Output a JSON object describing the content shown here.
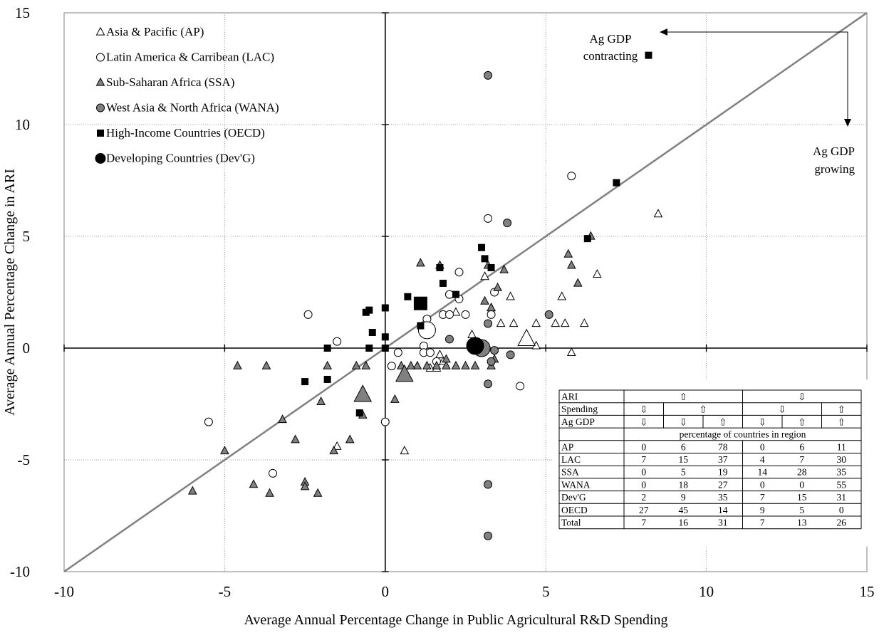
{
  "chart_data": {
    "type": "scatter",
    "xlabel": "Average Annual Percentage Change in Public Agricultural R&D Spending",
    "ylabel": "Average Annual Percentage Change in ARI",
    "xlim": [
      -10,
      15
    ],
    "ylim": [
      -10,
      15
    ],
    "x_ticks": [
      "-10",
      "-5",
      "0",
      "5",
      "10",
      "15"
    ],
    "y_ticks": [
      "-10",
      "-5",
      "0",
      "5",
      "10",
      "15"
    ],
    "grid": true,
    "legend_position": "top-left",
    "reference_line": {
      "from": [
        -10,
        -10
      ],
      "to": [
        15,
        15
      ],
      "color": "#808080"
    },
    "annotations": [
      {
        "lines": [
          "Ag GDP",
          "contracting"
        ],
        "arrow": "left"
      },
      {
        "lines": [
          "Ag GDP",
          "growing"
        ],
        "arrow": "down"
      }
    ],
    "series": [
      {
        "name": "Asia & Pacific (AP)",
        "marker": "triangle",
        "fill": "#ffffff",
        "points": [
          [
            8.5,
            6.0
          ],
          [
            6.6,
            3.3
          ],
          [
            5.5,
            2.3
          ],
          [
            6.2,
            1.1
          ],
          [
            5.6,
            1.1
          ],
          [
            5.3,
            1.1
          ],
          [
            4.7,
            1.1
          ],
          [
            4.0,
            1.1
          ],
          [
            3.6,
            1.1
          ],
          [
            3.9,
            2.3
          ],
          [
            3.3,
            1.8
          ],
          [
            3.1,
            3.2
          ],
          [
            2.7,
            0.6
          ],
          [
            2.2,
            1.6
          ],
          [
            1.8,
            -0.6
          ],
          [
            1.4,
            -0.9
          ],
          [
            1.6,
            -0.9
          ],
          [
            1.7,
            -0.3
          ],
          [
            0.6,
            -4.6
          ],
          [
            5.8,
            -0.2
          ],
          [
            -1.5,
            -4.4
          ],
          [
            4.7,
            0.1
          ]
        ],
        "averages": [
          [
            4.4,
            0.4
          ]
        ]
      },
      {
        "name": "Latin America & Carribean (LAC)",
        "marker": "circle",
        "fill": "#ffffff",
        "points": [
          [
            5.8,
            7.7
          ],
          [
            3.2,
            5.8
          ],
          [
            -2.4,
            1.5
          ],
          [
            -1.5,
            0.3
          ],
          [
            2.3,
            3.4
          ],
          [
            1.8,
            1.5
          ],
          [
            2.0,
            2.4
          ],
          [
            2.0,
            1.5
          ],
          [
            2.5,
            1.5
          ],
          [
            2.3,
            2.2
          ],
          [
            3.4,
            2.5
          ],
          [
            3.3,
            1.5
          ],
          [
            1.2,
            0.1
          ],
          [
            1.3,
            1.3
          ],
          [
            1.2,
            -0.2
          ],
          [
            1.4,
            -0.2
          ],
          [
            0.4,
            -0.2
          ],
          [
            0.2,
            -0.8
          ],
          [
            0.0,
            -3.3
          ],
          [
            4.2,
            -1.7
          ],
          [
            -5.5,
            -3.3
          ],
          [
            -3.5,
            -5.6
          ],
          [
            1.6,
            -0.6
          ]
        ],
        "averages": [
          [
            1.3,
            0.8
          ]
        ]
      },
      {
        "name": "Sub-Saharan Africa (SSA)",
        "marker": "triangle",
        "fill": "#808080",
        "points": [
          [
            6.4,
            5.0
          ],
          [
            5.7,
            4.2
          ],
          [
            5.8,
            3.7
          ],
          [
            6.0,
            2.9
          ],
          [
            3.7,
            3.5
          ],
          [
            3.5,
            2.7
          ],
          [
            3.2,
            3.7
          ],
          [
            3.1,
            2.1
          ],
          [
            1.7,
            3.7
          ],
          [
            1.1,
            3.8
          ],
          [
            3.3,
            1.8
          ],
          [
            2.8,
            -0.8
          ],
          [
            2.5,
            -0.8
          ],
          [
            2.2,
            -0.8
          ],
          [
            1.9,
            -0.8
          ],
          [
            1.6,
            -0.8
          ],
          [
            1.3,
            -0.8
          ],
          [
            1.0,
            -0.8
          ],
          [
            0.8,
            -0.8
          ],
          [
            0.5,
            -0.8
          ],
          [
            3.3,
            -0.8
          ],
          [
            3.4,
            -0.5
          ],
          [
            -0.6,
            -0.8
          ],
          [
            -0.9,
            -0.8
          ],
          [
            -1.8,
            -0.8
          ],
          [
            -3.7,
            -0.8
          ],
          [
            -4.6,
            -0.8
          ],
          [
            0.3,
            -2.3
          ],
          [
            -2.0,
            -2.4
          ],
          [
            -3.2,
            -3.2
          ],
          [
            -0.7,
            -3.0
          ],
          [
            -2.8,
            -4.1
          ],
          [
            -1.1,
            -4.1
          ],
          [
            -1.6,
            -4.6
          ],
          [
            -5.0,
            -4.6
          ],
          [
            -4.1,
            -6.1
          ],
          [
            -3.6,
            -6.5
          ],
          [
            -2.5,
            -6.0
          ],
          [
            -2.1,
            -6.5
          ],
          [
            -2.5,
            -6.2
          ],
          [
            -6.0,
            -6.4
          ],
          [
            1.9,
            -0.5
          ]
        ],
        "averages": [
          [
            0.6,
            -1.2
          ],
          [
            -0.7,
            -2.1
          ]
        ]
      },
      {
        "name": "West Asia & North Africa (WANA)",
        "marker": "circle",
        "fill": "#808080",
        "points": [
          [
            3.2,
            12.2
          ],
          [
            3.8,
            5.6
          ],
          [
            5.1,
            1.5
          ],
          [
            3.2,
            1.1
          ],
          [
            2.0,
            0.4
          ],
          [
            3.9,
            -0.3
          ],
          [
            3.4,
            -0.1
          ],
          [
            3.3,
            -0.6
          ],
          [
            3.2,
            -1.6
          ],
          [
            3.2,
            -6.1
          ],
          [
            3.2,
            -8.4
          ]
        ],
        "averages": [
          [
            3.0,
            0.0
          ]
        ]
      },
      {
        "name": "High-Income Countries (OECD)",
        "marker": "square",
        "fill": "#000000",
        "points": [
          [
            8.2,
            13.1
          ],
          [
            7.2,
            7.4
          ],
          [
            6.3,
            4.9
          ],
          [
            3.0,
            4.5
          ],
          [
            3.1,
            4.0
          ],
          [
            3.3,
            3.6
          ],
          [
            1.7,
            3.6
          ],
          [
            1.8,
            2.9
          ],
          [
            2.2,
            2.4
          ],
          [
            0.7,
            2.3
          ],
          [
            0.0,
            1.8
          ],
          [
            -0.5,
            1.7
          ],
          [
            -0.6,
            1.6
          ],
          [
            -0.4,
            0.7
          ],
          [
            0.0,
            0.5
          ],
          [
            -1.8,
            0.0
          ],
          [
            -0.5,
            0.0
          ],
          [
            0.0,
            0.0
          ],
          [
            -1.8,
            -1.4
          ],
          [
            -2.5,
            -1.5
          ],
          [
            -0.8,
            -2.9
          ],
          [
            1.1,
            1.0
          ]
        ],
        "averages": [
          [
            1.1,
            2.0
          ]
        ]
      },
      {
        "name": "Developing Countries (Dev'G)",
        "marker": "circle",
        "fill": "#000000",
        "points": [],
        "averages": [
          [
            2.8,
            0.1
          ]
        ]
      }
    ]
  },
  "table": {
    "header_rows": [
      {
        "label": "ARI",
        "cells": [
          {
            "text": "⇧",
            "span": 3
          },
          {
            "text": "⇩",
            "span": 3
          }
        ]
      },
      {
        "label": "Spending",
        "cells": [
          {
            "text": "⇩",
            "span": 1
          },
          {
            "text": "⇧",
            "span": 2
          },
          {
            "text": "⇩",
            "span": 2
          },
          {
            "text": "⇧",
            "span": 1
          }
        ]
      },
      {
        "label": "Ag GDP",
        "cells": [
          {
            "text": "⇩",
            "span": 1
          },
          {
            "text": "⇩",
            "span": 1
          },
          {
            "text": "⇧",
            "span": 1
          },
          {
            "text": "⇩",
            "span": 1
          },
          {
            "text": "⇧",
            "span": 1
          },
          {
            "text": "⇧",
            "span": 1
          }
        ]
      }
    ],
    "subheader": "percentage of countries in region",
    "rows": [
      {
        "label": "AP",
        "values": [
          "0",
          "6",
          "78",
          "0",
          "6",
          "11"
        ]
      },
      {
        "label": "LAC",
        "values": [
          "7",
          "15",
          "37",
          "4",
          "7",
          "30"
        ]
      },
      {
        "label": "SSA",
        "values": [
          "0",
          "5",
          "19",
          "14",
          "28",
          "35"
        ]
      },
      {
        "label": "WANA",
        "values": [
          "0",
          "18",
          "27",
          "0",
          "0",
          "55"
        ]
      },
      {
        "label": "Dev'G",
        "values": [
          "2",
          "9",
          "35",
          "7",
          "15",
          "31"
        ]
      },
      {
        "label": "OECD",
        "values": [
          "27",
          "45",
          "14",
          "9",
          "5",
          "0"
        ]
      },
      {
        "label": "Total",
        "values": [
          "7",
          "16",
          "31",
          "7",
          "13",
          "26"
        ]
      }
    ]
  }
}
